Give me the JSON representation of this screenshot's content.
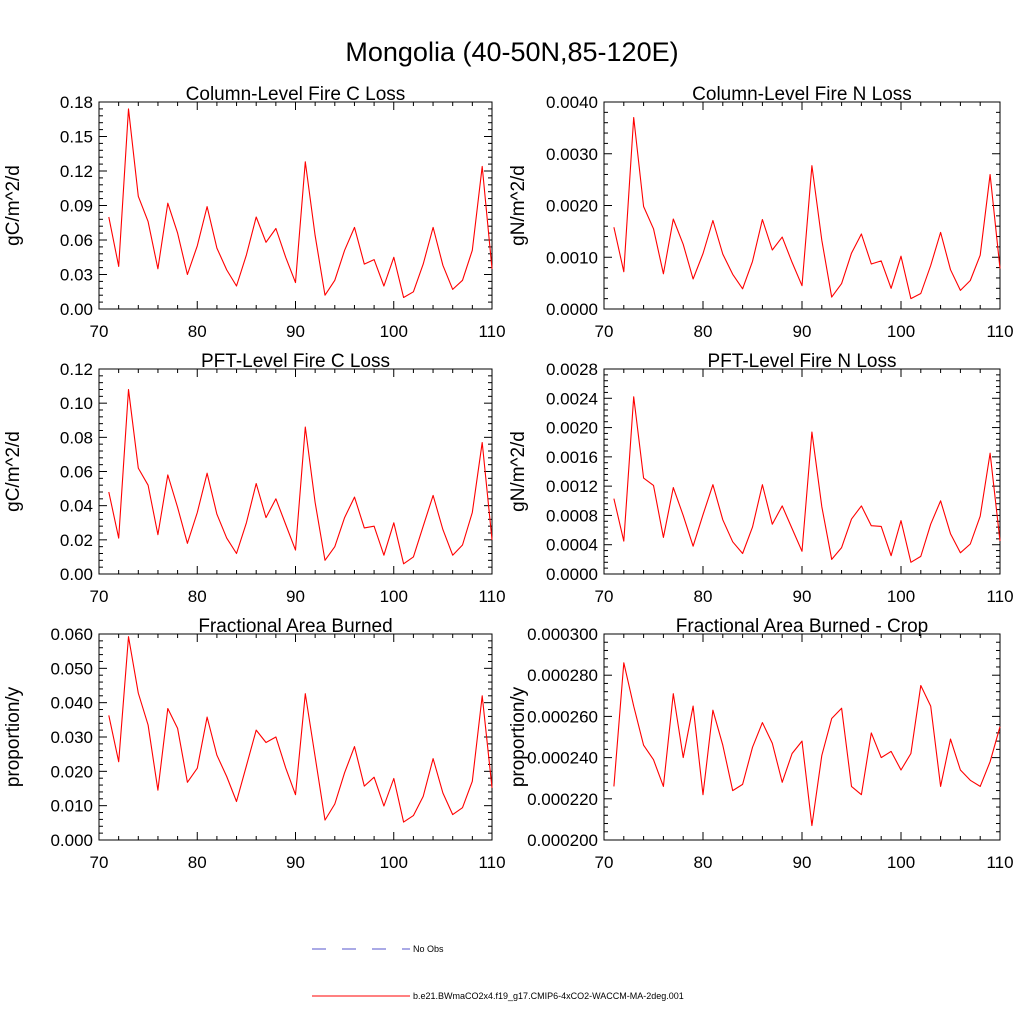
{
  "figure_title": "Mongolia (40-50N,85-120E)",
  "legend": {
    "entries": [
      {
        "label": "No Obs",
        "style": "dashed",
        "color": "#5555cc"
      },
      {
        "label": "b.e21.BWmaCO2x4.f19_g17.CMIP6-4xCO2-WACCM-MA-2deg.001",
        "style": "solid",
        "color": "#ff0000"
      }
    ]
  },
  "colors": {
    "series": "#ff0000",
    "axis": "#000000"
  },
  "chart_data": [
    {
      "type": "line",
      "title": "Column-Level Fire C Loss",
      "xlabel": "",
      "ylabel": "gC/m^2/d",
      "xlim": [
        70,
        110
      ],
      "ylim": [
        0,
        0.18
      ],
      "x_ticks": [
        70,
        80,
        90,
        100,
        110
      ],
      "x_tick_labels": [
        "70",
        "80",
        "90",
        "100",
        "110"
      ],
      "y_ticks": [
        0,
        0.03,
        0.06,
        0.09,
        0.12,
        0.15,
        0.18
      ],
      "y_tick_labels": [
        "0.00",
        "0.03",
        "0.06",
        "0.09",
        "0.12",
        "0.15",
        "0.18"
      ],
      "series": [
        {
          "name": "b.e21.BWmaCO2x4.f19_g17.CMIP6-4xCO2-WACCM-MA-2deg.001",
          "x": [
            71,
            72,
            73,
            74,
            75,
            76,
            77,
            78,
            79,
            80,
            81,
            82,
            83,
            84,
            85,
            86,
            87,
            88,
            89,
            90,
            91,
            92,
            93,
            94,
            95,
            96,
            97,
            98,
            99,
            100,
            101,
            102,
            103,
            104,
            105,
            106,
            107,
            108,
            109,
            110
          ],
          "values": [
            0.08,
            0.037,
            0.174,
            0.098,
            0.076,
            0.035,
            0.092,
            0.066,
            0.03,
            0.055,
            0.089,
            0.053,
            0.034,
            0.02,
            0.047,
            0.08,
            0.058,
            0.07,
            0.045,
            0.023,
            0.128,
            0.064,
            0.012,
            0.025,
            0.051,
            0.071,
            0.039,
            0.043,
            0.02,
            0.045,
            0.01,
            0.015,
            0.039,
            0.071,
            0.038,
            0.017,
            0.025,
            0.051,
            0.124,
            0.035
          ]
        }
      ]
    },
    {
      "type": "line",
      "title": "Column-Level Fire N Loss",
      "xlabel": "",
      "ylabel": "gN/m^2/d",
      "xlim": [
        70,
        110
      ],
      "ylim": [
        0,
        0.004
      ],
      "x_ticks": [
        70,
        80,
        90,
        100,
        110
      ],
      "x_tick_labels": [
        "70",
        "80",
        "90",
        "100",
        "110"
      ],
      "y_ticks": [
        0,
        0.001,
        0.002,
        0.003,
        0.004
      ],
      "y_tick_labels": [
        "0.0000",
        "0.0010",
        "0.0020",
        "0.0030",
        "0.0040"
      ],
      "series": [
        {
          "name": "b.e21.BWmaCO2x4.f19_g17.CMIP6-4xCO2-WACCM-MA-2deg.001",
          "x": [
            71,
            72,
            73,
            74,
            75,
            76,
            77,
            78,
            79,
            80,
            81,
            82,
            83,
            84,
            85,
            86,
            87,
            88,
            89,
            90,
            91,
            92,
            93,
            94,
            95,
            96,
            97,
            98,
            99,
            100,
            101,
            102,
            103,
            104,
            105,
            106,
            107,
            108,
            109,
            110
          ],
          "values": [
            0.00158,
            0.00072,
            0.0037,
            0.00198,
            0.00155,
            0.00068,
            0.00174,
            0.00125,
            0.00058,
            0.00107,
            0.00171,
            0.00106,
            0.00067,
            0.00039,
            0.00092,
            0.00173,
            0.00114,
            0.00139,
            0.0009,
            0.00045,
            0.00277,
            0.00133,
            0.00023,
            0.00049,
            0.00108,
            0.00145,
            0.00087,
            0.00093,
            0.0004,
            0.00102,
            0.0002,
            0.0003,
            0.00084,
            0.00148,
            0.00076,
            0.00036,
            0.00055,
            0.00104,
            0.0026,
            0.00078
          ]
        }
      ]
    },
    {
      "type": "line",
      "title": "PFT-Level Fire C Loss",
      "xlabel": "",
      "ylabel": "gC/m^2/d",
      "xlim": [
        70,
        110
      ],
      "ylim": [
        0,
        0.12
      ],
      "x_ticks": [
        70,
        80,
        90,
        100,
        110
      ],
      "x_tick_labels": [
        "70",
        "80",
        "90",
        "100",
        "110"
      ],
      "y_ticks": [
        0,
        0.02,
        0.04,
        0.06,
        0.08,
        0.1,
        0.12
      ],
      "y_tick_labels": [
        "0.00",
        "0.02",
        "0.04",
        "0.06",
        "0.08",
        "0.10",
        "0.12"
      ],
      "series": [
        {
          "name": "b.e21.BWmaCO2x4.f19_g17.CMIP6-4xCO2-WACCM-MA-2deg.001",
          "x": [
            71,
            72,
            73,
            74,
            75,
            76,
            77,
            78,
            79,
            80,
            81,
            82,
            83,
            84,
            85,
            86,
            87,
            88,
            89,
            90,
            91,
            92,
            93,
            94,
            95,
            96,
            97,
            98,
            99,
            100,
            101,
            102,
            103,
            104,
            105,
            106,
            107,
            108,
            109,
            110
          ],
          "values": [
            0.048,
            0.021,
            0.108,
            0.062,
            0.052,
            0.023,
            0.058,
            0.039,
            0.018,
            0.036,
            0.059,
            0.035,
            0.021,
            0.012,
            0.03,
            0.053,
            0.033,
            0.044,
            0.029,
            0.014,
            0.086,
            0.042,
            0.008,
            0.016,
            0.033,
            0.045,
            0.027,
            0.028,
            0.011,
            0.03,
            0.006,
            0.01,
            0.028,
            0.046,
            0.026,
            0.011,
            0.017,
            0.036,
            0.077,
            0.02
          ]
        }
      ]
    },
    {
      "type": "line",
      "title": "PFT-Level Fire N Loss",
      "xlabel": "",
      "ylabel": "gN/m^2/d",
      "xlim": [
        70,
        110
      ],
      "ylim": [
        0,
        0.0028
      ],
      "x_ticks": [
        70,
        80,
        90,
        100,
        110
      ],
      "x_tick_labels": [
        "70",
        "80",
        "90",
        "100",
        "110"
      ],
      "y_ticks": [
        0,
        0.0004,
        0.0008,
        0.0012,
        0.0016,
        0.002,
        0.0024,
        0.0028
      ],
      "y_tick_labels": [
        "0.0000",
        "0.0004",
        "0.0008",
        "0.0012",
        "0.0016",
        "0.0020",
        "0.0024",
        "0.0028"
      ],
      "series": [
        {
          "name": "b.e21.BWmaCO2x4.f19_g17.CMIP6-4xCO2-WACCM-MA-2deg.001",
          "x": [
            71,
            72,
            73,
            74,
            75,
            76,
            77,
            78,
            79,
            80,
            81,
            82,
            83,
            84,
            85,
            86,
            87,
            88,
            89,
            90,
            91,
            92,
            93,
            94,
            95,
            96,
            97,
            98,
            99,
            100,
            101,
            102,
            103,
            104,
            105,
            106,
            107,
            108,
            109,
            110
          ],
          "values": [
            0.00103,
            0.00045,
            0.00242,
            0.00131,
            0.00121,
            0.0005,
            0.00118,
            0.0008,
            0.00038,
            0.00081,
            0.00122,
            0.00074,
            0.00044,
            0.00028,
            0.00064,
            0.00122,
            0.00068,
            0.00093,
            0.00062,
            0.00031,
            0.00194,
            0.00092,
            0.0002,
            0.00036,
            0.00075,
            0.00093,
            0.00066,
            0.00065,
            0.00025,
            0.00073,
            0.00016,
            0.00024,
            0.00068,
            0.001,
            0.00055,
            0.00029,
            0.00041,
            0.00079,
            0.00165,
            0.00045
          ]
        }
      ]
    },
    {
      "type": "line",
      "title": "Fractional Area Burned",
      "xlabel": "",
      "ylabel": "proportion/y",
      "xlim": [
        70,
        110
      ],
      "ylim": [
        0,
        0.06
      ],
      "x_ticks": [
        70,
        80,
        90,
        100,
        110
      ],
      "x_tick_labels": [
        "70",
        "80",
        "90",
        "100",
        "110"
      ],
      "y_ticks": [
        0,
        0.01,
        0.02,
        0.03,
        0.04,
        0.05,
        0.06
      ],
      "y_tick_labels": [
        "0.000",
        "0.010",
        "0.020",
        "0.030",
        "0.040",
        "0.050",
        "0.060"
      ],
      "series": [
        {
          "name": "b.e21.BWmaCO2x4.f19_g17.CMIP6-4xCO2-WACCM-MA-2deg.001",
          "x": [
            71,
            72,
            73,
            74,
            75,
            76,
            77,
            78,
            79,
            80,
            81,
            82,
            83,
            84,
            85,
            86,
            87,
            88,
            89,
            90,
            91,
            92,
            93,
            94,
            95,
            96,
            97,
            98,
            99,
            100,
            101,
            102,
            103,
            104,
            105,
            106,
            107,
            108,
            109,
            110
          ],
          "values": [
            0.0363,
            0.0228,
            0.0592,
            0.0428,
            0.0335,
            0.0145,
            0.0383,
            0.0325,
            0.0168,
            0.0209,
            0.0358,
            0.0247,
            0.0185,
            0.0112,
            0.0216,
            0.032,
            0.0284,
            0.03,
            0.021,
            0.0132,
            0.0426,
            0.0243,
            0.0058,
            0.0105,
            0.0196,
            0.0272,
            0.0157,
            0.0183,
            0.0099,
            0.0179,
            0.0052,
            0.0071,
            0.0127,
            0.0237,
            0.0137,
            0.0074,
            0.0094,
            0.0171,
            0.042,
            0.0152
          ]
        }
      ]
    },
    {
      "type": "line",
      "title": "Fractional Area Burned - Crop",
      "xlabel": "",
      "ylabel": "proportion/y",
      "xlim": [
        70,
        110
      ],
      "ylim": [
        0.0002,
        0.0003
      ],
      "x_ticks": [
        70,
        80,
        90,
        100,
        110
      ],
      "x_tick_labels": [
        "70",
        "80",
        "90",
        "100",
        "110"
      ],
      "y_ticks": [
        0.0002,
        0.00022,
        0.00024,
        0.00026,
        0.00028,
        0.0003
      ],
      "y_tick_labels": [
        "0.000200",
        "0.000220",
        "0.000240",
        "0.000260",
        "0.000280",
        "0.000300"
      ],
      "series": [
        {
          "name": "b.e21.BWmaCO2x4.f19_g17.CMIP6-4xCO2-WACCM-MA-2deg.001",
          "x": [
            71,
            72,
            73,
            74,
            75,
            76,
            77,
            78,
            79,
            80,
            81,
            82,
            83,
            84,
            85,
            86,
            87,
            88,
            89,
            90,
            91,
            92,
            93,
            94,
            95,
            96,
            97,
            98,
            99,
            100,
            101,
            102,
            103,
            104,
            105,
            106,
            107,
            108,
            109,
            110
          ],
          "values": [
            0.000226,
            0.000286,
            0.000265,
            0.000246,
            0.000239,
            0.000226,
            0.000271,
            0.00024,
            0.000265,
            0.000222,
            0.000263,
            0.000246,
            0.000224,
            0.000227,
            0.000245,
            0.000257,
            0.000247,
            0.000228,
            0.000242,
            0.000248,
            0.000207,
            0.000241,
            0.000259,
            0.000264,
            0.000226,
            0.000222,
            0.000252,
            0.00024,
            0.000243,
            0.000234,
            0.000242,
            0.000275,
            0.000265,
            0.000226,
            0.000249,
            0.000234,
            0.000229,
            0.000226,
            0.000238,
            0.000255
          ]
        }
      ]
    }
  ]
}
